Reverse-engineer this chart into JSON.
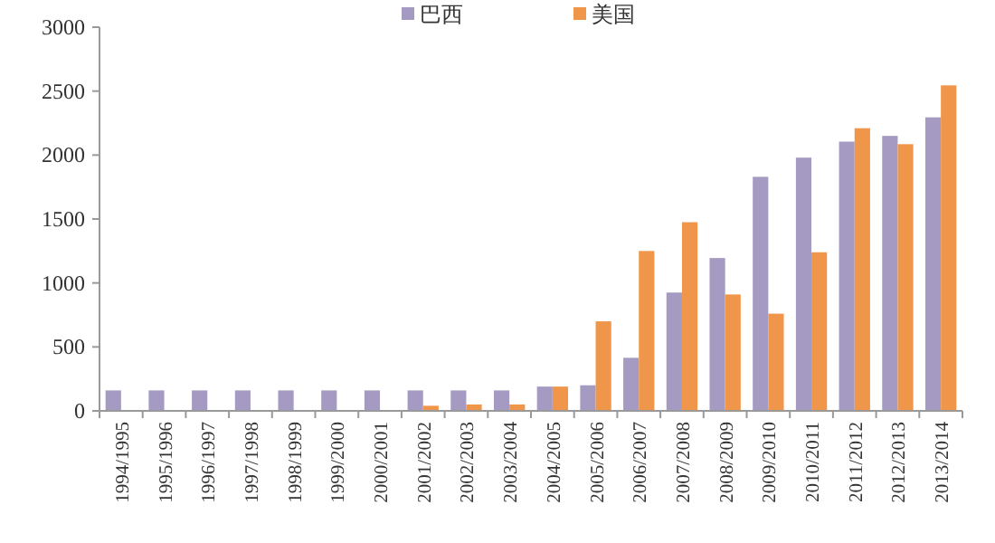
{
  "chart_data": {
    "type": "bar",
    "categories": [
      "1994/1995",
      "1995/1996",
      "1996/1997",
      "1997/1998",
      "1998/1999",
      "1999/2000",
      "2000/2001",
      "2001/2002",
      "2002/2003",
      "2003/2004",
      "2004/2005",
      "2005/2006",
      "2006/2007",
      "2007/2008",
      "2008/2009",
      "2009/2010",
      "2010/2011",
      "2011/2012",
      "2012/2013",
      "2013/2014"
    ],
    "series": [
      {
        "name": "巴西",
        "color": "#a59bc2",
        "values": [
          160,
          160,
          160,
          160,
          160,
          160,
          160,
          160,
          160,
          160,
          190,
          200,
          415,
          925,
          1195,
          1830,
          1980,
          2105,
          2150,
          2295
        ]
      },
      {
        "name": "美国",
        "color": "#f0964a",
        "values": [
          0,
          0,
          0,
          0,
          0,
          0,
          5,
          40,
          50,
          50,
          190,
          700,
          1250,
          1475,
          910,
          760,
          1240,
          2210,
          2085,
          2545
        ]
      }
    ],
    "ylim": [
      0,
      3000
    ],
    "yticks": [
      0,
      500,
      1000,
      1500,
      2000,
      2500,
      3000
    ],
    "grid": false,
    "legend": "top"
  }
}
